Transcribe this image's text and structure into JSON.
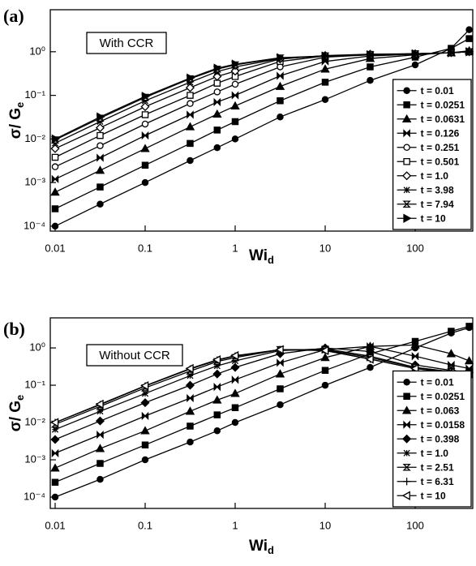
{
  "chart_data": [
    {
      "type": "line",
      "panel_label": "(a)",
      "annotation": "With CCR",
      "x_label": {
        "base": "Wi",
        "sub": "d"
      },
      "y_label": {
        "base": "σ/ G",
        "sub": "e"
      },
      "xscale": "log",
      "yscale": "log",
      "xlim": [
        0.00883,
        436
      ],
      "ylim": [
        7.7e-05,
        9.2
      ],
      "xticks": [
        0.01,
        0.1,
        1,
        10,
        100
      ],
      "yticks": [
        {
          "value": 0.0001,
          "label": "10⁻⁴"
        },
        {
          "value": 0.001,
          "label": "10⁻³"
        },
        {
          "value": 0.01,
          "label": "10⁻²"
        },
        {
          "value": 0.1,
          "label": "10⁻¹"
        },
        {
          "value": 1,
          "label": "10⁰"
        }
      ],
      "legend": "lower right",
      "x": [
        0.01,
        0.0316,
        0.1,
        0.316,
        0.631,
        1,
        3.16,
        10,
        31.6,
        100,
        251,
        398
      ],
      "series": [
        {
          "name": "t = 0.01",
          "color": "#000000",
          "marker": "circle",
          "values": [
            0.0001,
            0.00032,
            0.001,
            0.0032,
            0.0063,
            0.01,
            0.032,
            0.08,
            0.22,
            0.5,
            1.2,
            3.2
          ]
        },
        {
          "name": "t = 0.0251",
          "color": "#000000",
          "marker": "square",
          "values": [
            0.00025,
            0.00079,
            0.0025,
            0.0079,
            0.016,
            0.025,
            0.075,
            0.2,
            0.45,
            0.75,
            1.2,
            2.0
          ]
        },
        {
          "name": "t = 0.0631",
          "color": "#000000",
          "marker": "triangle",
          "values": [
            0.0006,
            0.0019,
            0.006,
            0.019,
            0.037,
            0.057,
            0.16,
            0.4,
            0.7,
            0.85,
            0.95,
            1.05
          ]
        },
        {
          "name": "t = 0.126",
          "color": "#000000",
          "marker": "bowtie",
          "values": [
            0.0012,
            0.0037,
            0.012,
            0.036,
            0.07,
            0.1,
            0.28,
            0.6,
            0.8,
            0.88,
            0.95,
            1.0
          ]
        },
        {
          "name": "t = 0.251",
          "color": "#000000",
          "marker": "circle-open",
          "values": [
            0.0023,
            0.007,
            0.022,
            0.065,
            0.12,
            0.18,
            0.45,
            0.75,
            0.85,
            0.9,
            0.95,
            1.0
          ]
        },
        {
          "name": "t = 0.501",
          "color": "#000000",
          "marker": "square-open",
          "values": [
            0.0038,
            0.012,
            0.036,
            0.1,
            0.19,
            0.27,
            0.6,
            0.8,
            0.87,
            0.9,
            0.95,
            1.0
          ]
        },
        {
          "name": "t = 1.0",
          "color": "#000000",
          "marker": "diamond-open",
          "values": [
            0.006,
            0.018,
            0.055,
            0.15,
            0.27,
            0.36,
            0.68,
            0.82,
            0.88,
            0.9,
            0.95,
            1.0
          ]
        },
        {
          "name": "t = 3.98",
          "color": "#000000",
          "marker": "asterisk",
          "values": [
            0.008,
            0.025,
            0.075,
            0.2,
            0.35,
            0.45,
            0.7,
            0.8,
            0.85,
            0.9,
            0.95,
            1.0
          ]
        },
        {
          "name": "t = 7.94",
          "color": "#000000",
          "marker": "hourglass-open",
          "values": [
            0.0095,
            0.03,
            0.09,
            0.24,
            0.4,
            0.5,
            0.72,
            0.8,
            0.85,
            0.9,
            0.95,
            1.0
          ]
        },
        {
          "name": "t = 10",
          "color": "#000000",
          "marker": "triangle-right",
          "values": [
            0.01,
            0.032,
            0.095,
            0.25,
            0.42,
            0.52,
            0.73,
            0.8,
            0.85,
            0.9,
            0.95,
            1.0
          ]
        }
      ]
    },
    {
      "type": "line",
      "panel_label": "(b)",
      "annotation": "Without CCR",
      "x_label": {
        "base": "Wi",
        "sub": "d"
      },
      "y_label": {
        "base": "σ/ G",
        "sub": "e"
      },
      "xscale": "log",
      "yscale": "log",
      "xlim": [
        0.00883,
        436
      ],
      "ylim": [
        4.97e-05,
        6.4
      ],
      "xticks": [
        0.01,
        0.1,
        1,
        10,
        100
      ],
      "yticks": [
        {
          "value": 0.0001,
          "label": "10⁻⁴"
        },
        {
          "value": 0.001,
          "label": "10⁻³"
        },
        {
          "value": 0.01,
          "label": "10⁻²"
        },
        {
          "value": 0.1,
          "label": "10⁻¹"
        },
        {
          "value": 1,
          "label": "10⁰"
        }
      ],
      "legend": "lower right",
      "x": [
        0.01,
        0.0316,
        0.1,
        0.316,
        0.631,
        1,
        3.16,
        10,
        31.6,
        100,
        251,
        398
      ],
      "series": [
        {
          "name": "t = 0.01",
          "color": "#000000",
          "marker": "circle",
          "values": [
            0.0001,
            0.0003,
            0.001,
            0.003,
            0.006,
            0.01,
            0.03,
            0.1,
            0.3,
            1.0,
            2.5,
            3.5
          ]
        },
        {
          "name": "t = 0.0251",
          "color": "#000000",
          "marker": "square",
          "values": [
            0.00025,
            0.0008,
            0.0025,
            0.008,
            0.016,
            0.025,
            0.08,
            0.25,
            0.7,
            1.5,
            2.8,
            3.8
          ]
        },
        {
          "name": "t = 0.063",
          "color": "#000000",
          "marker": "triangle",
          "values": [
            0.0006,
            0.002,
            0.006,
            0.02,
            0.04,
            0.06,
            0.2,
            0.55,
            1.1,
            1.2,
            0.7,
            0.45
          ]
        },
        {
          "name": "t = 0.0158",
          "color": "#000000",
          "marker": "bowtie",
          "values": [
            0.0015,
            0.0047,
            0.015,
            0.045,
            0.09,
            0.14,
            0.4,
            0.9,
            1.1,
            0.6,
            0.35,
            0.28
          ]
        },
        {
          "name": "t = 0.398",
          "color": "#000000",
          "marker": "diamond",
          "values": [
            0.0035,
            0.011,
            0.034,
            0.1,
            0.2,
            0.3,
            0.7,
            1.0,
            0.8,
            0.35,
            0.25,
            0.22
          ]
        },
        {
          "name": "t = 1.0",
          "color": "#000000",
          "marker": "asterisk",
          "values": [
            0.0065,
            0.02,
            0.06,
            0.18,
            0.33,
            0.45,
            0.85,
            0.95,
            0.6,
            0.3,
            0.23,
            0.21
          ]
        },
        {
          "name": "t = 2.51",
          "color": "#000000",
          "marker": "hourglass-open",
          "values": [
            0.009,
            0.027,
            0.085,
            0.24,
            0.43,
            0.55,
            0.9,
            0.9,
            0.55,
            0.3,
            0.23,
            0.21
          ]
        },
        {
          "name": "t = 6.31",
          "color": "#000000",
          "marker": "plus",
          "values": [
            0.01,
            0.03,
            0.095,
            0.27,
            0.47,
            0.6,
            0.9,
            0.85,
            0.5,
            0.28,
            0.22,
            0.21
          ]
        },
        {
          "name": "t = 10",
          "color": "#000000",
          "marker": "triangle-left-open",
          "values": [
            0.01,
            0.031,
            0.097,
            0.28,
            0.48,
            0.62,
            0.9,
            0.85,
            0.5,
            0.28,
            0.22,
            0.2
          ]
        }
      ]
    }
  ]
}
